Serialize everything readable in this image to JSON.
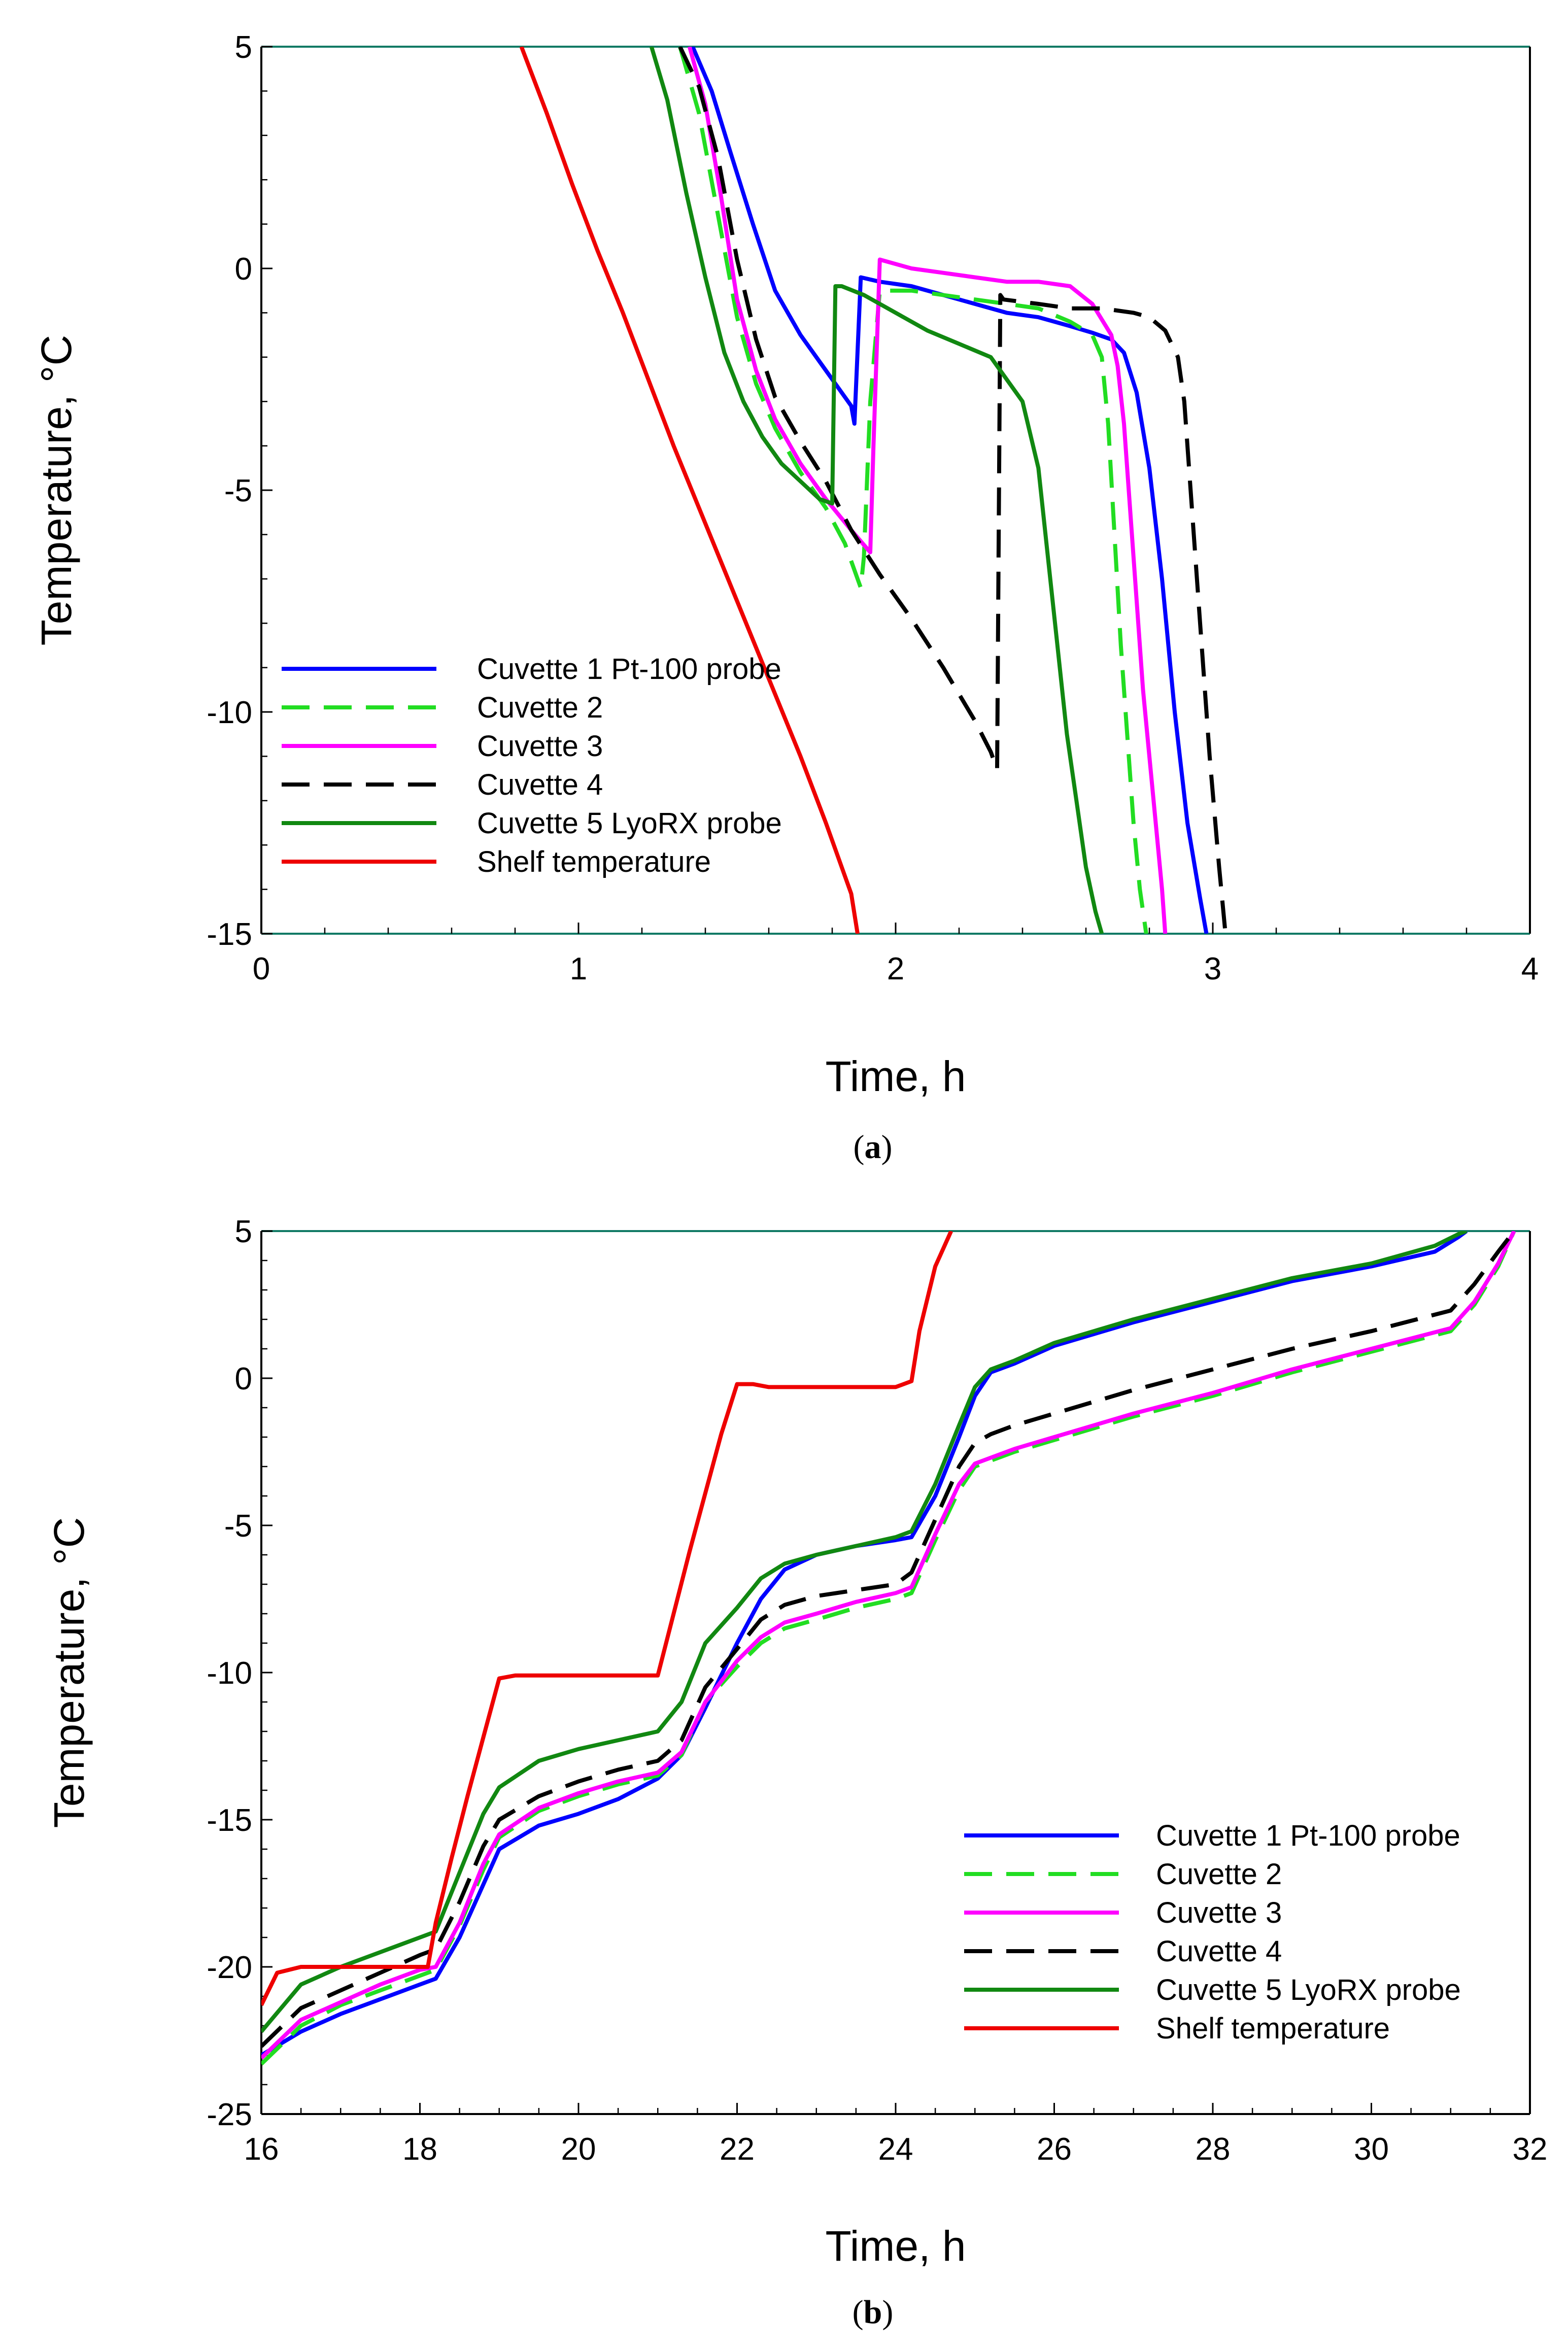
{
  "chart_data": [
    {
      "type": "line",
      "caption_open": "(",
      "caption_letter": "a",
      "caption_close": ")",
      "xlabel": "Time, h",
      "ylabel": "Temperature, °C",
      "xlim": [
        0,
        4
      ],
      "ylim": [
        -15,
        5
      ],
      "xticks": [
        0,
        1,
        2,
        3,
        4
      ],
      "yticks": [
        5,
        0,
        -5,
        -10,
        -15
      ],
      "grid": false,
      "legend_position": "lower-left",
      "series": [
        {
          "name": "Cuvette 1 Pt-100 probe",
          "color": "#0000ff",
          "dash": "solid",
          "x": [
            1.36,
            1.42,
            1.48,
            1.55,
            1.62,
            1.7,
            1.78,
            1.86,
            1.87,
            1.89,
            1.95,
            2.05,
            2.15,
            2.25,
            2.35,
            2.45,
            2.55,
            2.62,
            2.68,
            2.72,
            2.76,
            2.8,
            2.84,
            2.88,
            2.92,
            2.96,
            2.98
          ],
          "y": [
            5,
            4.0,
            2.6,
            1.0,
            -0.5,
            -1.5,
            -2.3,
            -3.1,
            -3.5,
            -0.2,
            -0.3,
            -0.4,
            -0.6,
            -0.8,
            -1.0,
            -1.1,
            -1.3,
            -1.45,
            -1.6,
            -1.9,
            -2.8,
            -4.5,
            -7.0,
            -10.0,
            -12.5,
            -14.2,
            -15
          ]
        },
        {
          "name": "Cuvette 2",
          "color": "#22dd22",
          "dash": "long",
          "x": [
            1.32,
            1.38,
            1.44,
            1.5,
            1.56,
            1.62,
            1.7,
            1.78,
            1.84,
            1.88,
            1.89,
            1.9,
            1.92,
            1.95,
            2.05,
            2.15,
            2.25,
            2.35,
            2.45,
            2.55,
            2.62,
            2.65,
            2.67,
            2.69,
            2.71,
            2.73,
            2.75,
            2.77,
            2.79
          ],
          "y": [
            5,
            3.5,
            1.2,
            -1.1,
            -2.6,
            -3.6,
            -4.6,
            -5.4,
            -6.2,
            -7.0,
            -7.2,
            -6.5,
            -3.0,
            -0.5,
            -0.5,
            -0.6,
            -0.7,
            -0.8,
            -0.9,
            -1.2,
            -1.5,
            -2.0,
            -3.5,
            -6.0,
            -8.5,
            -10.5,
            -12.5,
            -14.0,
            -15
          ]
        },
        {
          "name": "Cuvette 3",
          "color": "#ff00ff",
          "dash": "solid",
          "x": [
            1.35,
            1.4,
            1.45,
            1.5,
            1.56,
            1.62,
            1.7,
            1.78,
            1.86,
            1.92,
            1.93,
            1.95,
            2.05,
            2.15,
            2.25,
            2.35,
            2.45,
            2.55,
            2.62,
            2.68,
            2.7,
            2.72,
            2.74,
            2.76,
            2.78,
            2.8,
            2.82,
            2.84,
            2.85
          ],
          "y": [
            5,
            3.7,
            1.6,
            -0.7,
            -2.3,
            -3.4,
            -4.4,
            -5.2,
            -5.9,
            -6.4,
            -4.0,
            0.2,
            0.0,
            -0.1,
            -0.2,
            -0.3,
            -0.3,
            -0.4,
            -0.8,
            -1.5,
            -2.2,
            -3.5,
            -5.5,
            -7.5,
            -9.5,
            -11.0,
            -12.5,
            -14.0,
            -15
          ]
        },
        {
          "name": "Cuvette 4",
          "color": "#000000",
          "dash": "long",
          "x": [
            1.32,
            1.38,
            1.44,
            1.5,
            1.56,
            1.62,
            1.7,
            1.78,
            1.86,
            1.95,
            2.05,
            2.15,
            2.25,
            2.3,
            2.32,
            2.33,
            2.34,
            2.45,
            2.55,
            2.65,
            2.75,
            2.8,
            2.85,
            2.89,
            2.91,
            2.93,
            2.96,
            2.99,
            3.02,
            3.04
          ],
          "y": [
            5,
            4.1,
            2.5,
            0.2,
            -1.6,
            -2.9,
            -3.9,
            -4.8,
            -5.9,
            -6.9,
            -7.9,
            -9.0,
            -10.2,
            -10.9,
            -11.3,
            -0.6,
            -0.7,
            -0.8,
            -0.9,
            -0.9,
            -1.0,
            -1.1,
            -1.4,
            -2.0,
            -3.0,
            -5.0,
            -8.0,
            -11.0,
            -13.5,
            -15
          ]
        },
        {
          "name": "Cuvette 5 LyoRX probe",
          "color": "#118811",
          "dash": "solid",
          "x": [
            1.23,
            1.28,
            1.34,
            1.4,
            1.46,
            1.52,
            1.58,
            1.64,
            1.7,
            1.76,
            1.8,
            1.81,
            1.83,
            1.9,
            2.0,
            2.1,
            2.2,
            2.3,
            2.4,
            2.45,
            2.48,
            2.51,
            2.54,
            2.57,
            2.6,
            2.63,
            2.65
          ],
          "y": [
            5,
            3.8,
            1.7,
            -0.2,
            -1.9,
            -3.0,
            -3.8,
            -4.4,
            -4.8,
            -5.2,
            -5.3,
            -0.4,
            -0.4,
            -0.6,
            -1.0,
            -1.4,
            -1.7,
            -2.0,
            -3.0,
            -4.5,
            -6.5,
            -8.5,
            -10.5,
            -12.0,
            -13.5,
            -14.5,
            -15
          ]
        },
        {
          "name": "Shelf temperature",
          "color": "#ee0000",
          "dash": "solid",
          "x": [
            0.82,
            0.9,
            0.98,
            1.06,
            1.14,
            1.22,
            1.3,
            1.38,
            1.46,
            1.54,
            1.62,
            1.7,
            1.78,
            1.86,
            1.88
          ],
          "y": [
            5,
            3.5,
            1.9,
            0.4,
            -1.0,
            -2.5,
            -4.0,
            -5.4,
            -6.8,
            -8.2,
            -9.6,
            -11.0,
            -12.5,
            -14.1,
            -15
          ]
        }
      ]
    },
    {
      "type": "line",
      "caption_open": "(",
      "caption_letter": "b",
      "caption_close": ")",
      "xlabel": "Time, h",
      "ylabel": "Temperature, °C",
      "xlim": [
        16,
        32
      ],
      "ylim": [
        -25,
        5
      ],
      "xticks": [
        16,
        18,
        20,
        22,
        24,
        26,
        28,
        30,
        32
      ],
      "yticks": [
        5,
        0,
        -5,
        -10,
        -15,
        -20,
        -25
      ],
      "grid": false,
      "legend_position": "lower-right",
      "series": [
        {
          "name": "Cuvette 1 Pt-100 probe",
          "color": "#0000ff",
          "dash": "solid",
          "x": [
            16.0,
            16.5,
            17.0,
            17.5,
            18.0,
            18.2,
            18.5,
            18.8,
            19.0,
            19.5,
            20.0,
            20.5,
            21.0,
            21.3,
            21.6,
            22.0,
            22.3,
            22.6,
            23.0,
            23.5,
            24.0,
            24.2,
            24.5,
            24.8,
            25.0,
            25.2,
            25.5,
            26.0,
            27.0,
            28.0,
            29.0,
            30.0,
            30.8,
            31.1,
            31.2
          ],
          "y": [
            -23.0,
            -22.2,
            -21.6,
            -21.1,
            -20.6,
            -20.4,
            -19.0,
            -17.2,
            -16.0,
            -15.2,
            -14.8,
            -14.3,
            -13.6,
            -12.8,
            -11.2,
            -9.0,
            -7.5,
            -6.5,
            -6.0,
            -5.7,
            -5.5,
            -5.4,
            -4.0,
            -2.0,
            -0.6,
            0.2,
            0.5,
            1.1,
            1.9,
            2.6,
            3.3,
            3.8,
            4.3,
            4.8,
            5.0
          ]
        },
        {
          "name": "Cuvette 2",
          "color": "#22dd22",
          "dash": "long",
          "x": [
            16.0,
            16.5,
            17.0,
            17.5,
            18.0,
            18.2,
            18.5,
            18.8,
            19.0,
            19.5,
            20.0,
            20.5,
            21.0,
            21.3,
            21.6,
            22.0,
            22.3,
            22.6,
            23.0,
            23.5,
            24.0,
            24.2,
            24.5,
            24.8,
            25.0,
            25.2,
            25.5,
            26.0,
            27.0,
            28.0,
            29.0,
            30.0,
            31.0,
            31.3,
            31.6,
            31.8
          ],
          "y": [
            -23.3,
            -22.0,
            -21.3,
            -20.8,
            -20.3,
            -20.1,
            -18.6,
            -16.7,
            -15.6,
            -14.7,
            -14.2,
            -13.8,
            -13.5,
            -12.8,
            -11.0,
            -9.8,
            -9.0,
            -8.5,
            -8.2,
            -7.8,
            -7.5,
            -7.3,
            -5.5,
            -3.8,
            -3.0,
            -2.8,
            -2.5,
            -2.1,
            -1.3,
            -0.6,
            0.2,
            0.9,
            1.6,
            2.5,
            3.8,
            5.0
          ]
        },
        {
          "name": "Cuvette 3",
          "color": "#ff00ff",
          "dash": "solid",
          "x": [
            16.0,
            16.5,
            17.0,
            17.5,
            18.0,
            18.2,
            18.5,
            18.8,
            19.0,
            19.5,
            20.0,
            20.5,
            21.0,
            21.3,
            21.6,
            22.0,
            22.3,
            22.6,
            23.0,
            23.5,
            24.0,
            24.2,
            24.5,
            24.8,
            25.0,
            25.2,
            25.5,
            26.0,
            27.0,
            28.0,
            29.0,
            30.0,
            31.0,
            31.3,
            31.6,
            31.8
          ],
          "y": [
            -23.1,
            -21.8,
            -21.2,
            -20.6,
            -20.1,
            -20.0,
            -18.5,
            -16.5,
            -15.5,
            -14.6,
            -14.1,
            -13.7,
            -13.4,
            -12.7,
            -11.0,
            -9.6,
            -8.8,
            -8.3,
            -8.0,
            -7.6,
            -7.3,
            -7.1,
            -5.3,
            -3.6,
            -2.9,
            -2.7,
            -2.4,
            -2.0,
            -1.2,
            -0.5,
            0.3,
            1.0,
            1.7,
            2.6,
            3.9,
            5.0
          ]
        },
        {
          "name": "Cuvette 4",
          "color": "#000000",
          "dash": "long",
          "x": [
            16.0,
            16.5,
            17.0,
            17.5,
            18.0,
            18.2,
            18.5,
            18.8,
            19.0,
            19.5,
            20.0,
            20.5,
            21.0,
            21.3,
            21.6,
            22.0,
            22.3,
            22.6,
            23.0,
            23.5,
            24.0,
            24.2,
            24.5,
            24.8,
            25.0,
            25.2,
            25.5,
            26.0,
            27.0,
            28.0,
            29.0,
            30.0,
            31.0,
            31.3,
            31.6,
            31.8
          ],
          "y": [
            -22.7,
            -21.4,
            -20.8,
            -20.2,
            -19.6,
            -19.4,
            -17.8,
            -15.9,
            -15.0,
            -14.2,
            -13.7,
            -13.3,
            -13.0,
            -12.3,
            -10.5,
            -9.2,
            -8.2,
            -7.7,
            -7.4,
            -7.2,
            -7.0,
            -6.6,
            -4.8,
            -3.0,
            -2.2,
            -1.9,
            -1.6,
            -1.2,
            -0.4,
            0.3,
            1.0,
            1.6,
            2.3,
            3.2,
            4.3,
            5.0
          ]
        },
        {
          "name": "Cuvette 5 LyoRX probe",
          "color": "#118811",
          "dash": "solid",
          "x": [
            16.0,
            16.5,
            17.0,
            17.5,
            18.0,
            18.2,
            18.5,
            18.8,
            19.0,
            19.5,
            20.0,
            20.5,
            21.0,
            21.3,
            21.6,
            22.0,
            22.3,
            22.6,
            23.0,
            23.5,
            24.0,
            24.2,
            24.5,
            24.8,
            25.0,
            25.2,
            25.5,
            26.0,
            27.0,
            28.0,
            29.0,
            30.0,
            30.8,
            31.1,
            31.2
          ],
          "y": [
            -22.2,
            -20.6,
            -20.0,
            -19.5,
            -19.0,
            -18.8,
            -16.8,
            -14.8,
            -13.9,
            -13.0,
            -12.6,
            -12.3,
            -12.0,
            -11.0,
            -9.0,
            -7.8,
            -6.8,
            -6.3,
            -6.0,
            -5.7,
            -5.4,
            -5.2,
            -3.6,
            -1.6,
            -0.3,
            0.3,
            0.6,
            1.2,
            2.0,
            2.7,
            3.4,
            3.9,
            4.5,
            4.9,
            5.0
          ]
        },
        {
          "name": "Shelf temperature",
          "color": "#ee0000",
          "dash": "solid",
          "x": [
            16.0,
            16.2,
            16.5,
            17.0,
            17.5,
            18.0,
            18.1,
            18.2,
            18.4,
            18.6,
            18.8,
            19.0,
            19.2,
            19.5,
            20.0,
            20.5,
            21.0,
            21.2,
            21.4,
            21.6,
            21.8,
            22.0,
            22.2,
            22.4,
            23.0,
            23.5,
            24.0,
            24.2,
            24.3,
            24.5,
            24.7
          ],
          "y": [
            -21.3,
            -20.2,
            -20.0,
            -20.0,
            -20.0,
            -20.0,
            -20.0,
            -18.5,
            -16.3,
            -14.2,
            -12.2,
            -10.2,
            -10.1,
            -10.1,
            -10.1,
            -10.1,
            -10.1,
            -8.0,
            -5.9,
            -3.9,
            -1.9,
            -0.2,
            -0.2,
            -0.3,
            -0.3,
            -0.3,
            -0.3,
            -0.1,
            1.6,
            3.8,
            5.0
          ]
        }
      ]
    }
  ]
}
